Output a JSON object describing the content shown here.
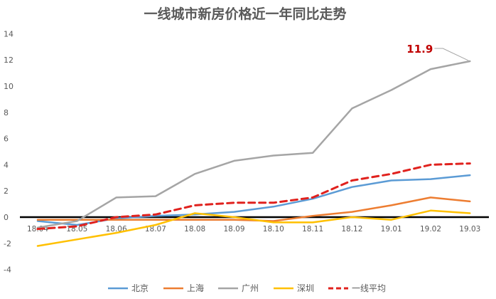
{
  "chart_data": {
    "type": "line",
    "title": "一线城市新房价格近一年同比走势",
    "xlabel": "",
    "ylabel": "",
    "categories": [
      "18.04",
      "18.05",
      "18.06",
      "18.07",
      "18.08",
      "18.09",
      "18.10",
      "18.11",
      "18.12",
      "19.01",
      "19.02",
      "19.03"
    ],
    "yticks": [
      14,
      12,
      10,
      8,
      6,
      4,
      2,
      0,
      -2,
      -4
    ],
    "ylim": [
      -4.8,
      14
    ],
    "grid": false,
    "legend_position": "bottom",
    "series": [
      {
        "name": "北京",
        "color": "#5b9bd5",
        "dashed": false,
        "values": [
          -0.3,
          -0.6,
          -0.1,
          0.1,
          0.2,
          0.4,
          0.8,
          1.4,
          2.3,
          2.8,
          2.9,
          3.2
        ]
      },
      {
        "name": "上海",
        "color": "#ed7d31",
        "dashed": false,
        "values": [
          -0.2,
          -0.2,
          -0.2,
          -0.2,
          -0.2,
          -0.2,
          -0.3,
          0.1,
          0.4,
          0.9,
          1.5,
          1.2
        ]
      },
      {
        "name": "广州",
        "color": "#a5a5a5",
        "dashed": false,
        "values": [
          -0.8,
          -0.3,
          1.5,
          1.6,
          3.3,
          4.3,
          4.7,
          4.9,
          8.3,
          9.7,
          11.3,
          11.9
        ]
      },
      {
        "name": "深圳",
        "color": "#ffc000",
        "dashed": false,
        "values": [
          -2.2,
          -1.7,
          -1.2,
          -0.6,
          0.3,
          0.0,
          -0.4,
          -0.4,
          0.0,
          -0.2,
          0.5,
          0.3
        ]
      },
      {
        "name": "一线平均",
        "color": "#e0211d",
        "dashed": true,
        "values": [
          -0.9,
          -0.7,
          0.0,
          0.2,
          0.9,
          1.1,
          1.1,
          1.5,
          2.8,
          3.3,
          4.0,
          4.1
        ]
      }
    ],
    "annotations": [
      {
        "text": "11.9",
        "series": "广州",
        "category": "19.03",
        "color": "#c00000"
      }
    ]
  }
}
